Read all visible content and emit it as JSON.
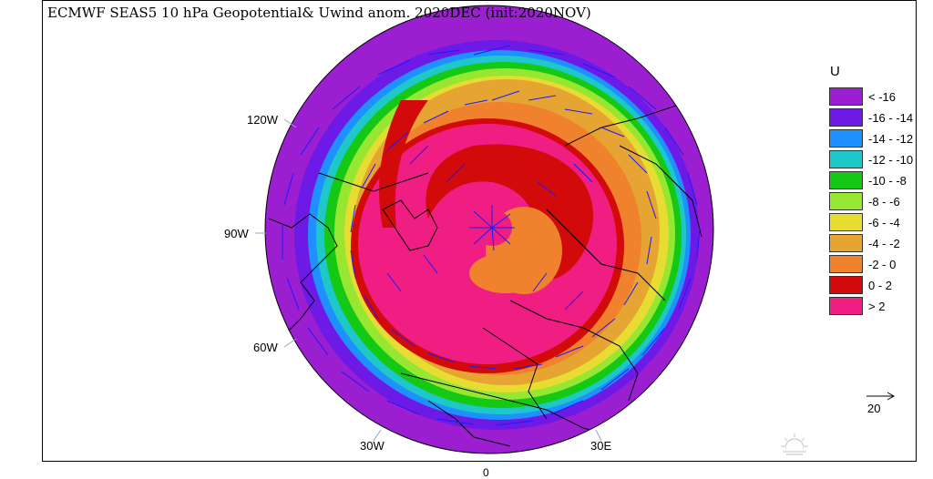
{
  "title": "ECMWF SEAS5 10 hPa Geopotential& Uwind anom. 2020DEC (init:2020NOV)",
  "legend": {
    "title": "U",
    "items": [
      {
        "label": "< -16",
        "color": "#9b1fd0"
      },
      {
        "label": "-16 - -14",
        "color": "#6e1ae6"
      },
      {
        "label": "-14 - -12",
        "color": "#1e90ff"
      },
      {
        "label": "-12 - -10",
        "color": "#1ec8c8"
      },
      {
        "label": "-10 - -8",
        "color": "#14c814"
      },
      {
        "label": "-8 - -6",
        "color": "#96e632"
      },
      {
        "label": "-6 - -4",
        "color": "#e6dc32"
      },
      {
        "label": "-4 - -2",
        "color": "#e6a532"
      },
      {
        "label": "-2 - 0",
        "color": "#f0822d"
      },
      {
        "label": "0 - 2",
        "color": "#d20a0a"
      },
      {
        "label": "> 2",
        "color": "#f01e82"
      }
    ]
  },
  "longitude_labels": {
    "w120": "120W",
    "w90": "90W",
    "w60": "60W",
    "w30": "30W",
    "e30": "30E",
    "zero": "0"
  },
  "vector_scale": {
    "label": "20"
  }
}
